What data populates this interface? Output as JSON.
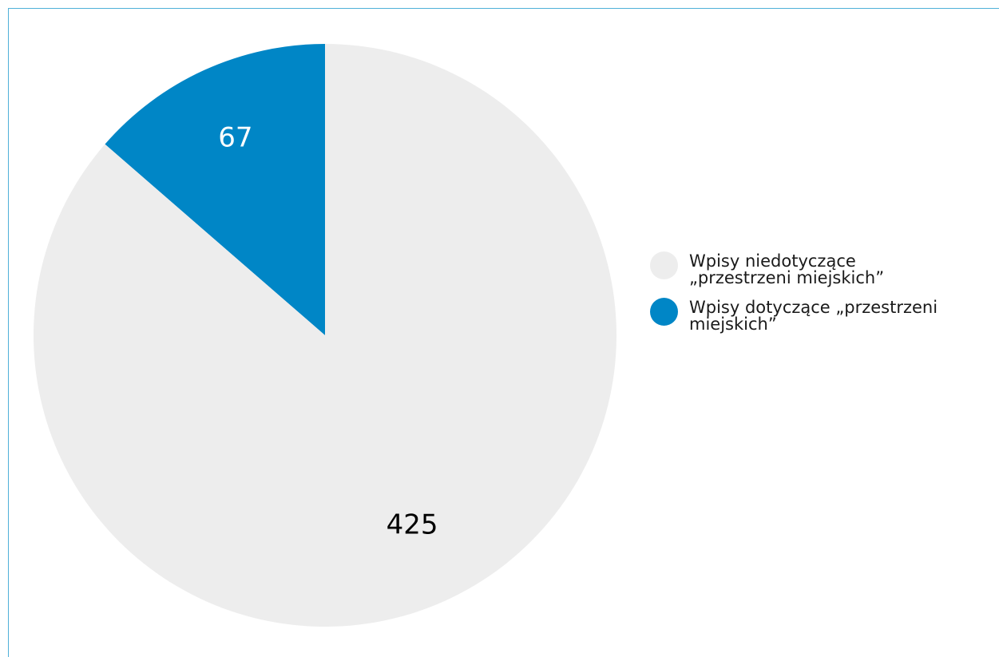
{
  "chart_data": {
    "type": "pie",
    "slices": [
      {
        "label": "Wpisy dotyczące „przestrzeni miejskich”",
        "value": 67,
        "color": "#0086c6",
        "label_color": "#ffffff"
      },
      {
        "label": "Wpisy niedotyczące „przestrzeni miejskich”",
        "value": 425,
        "color": "#ededed",
        "label_color": "#000000"
      }
    ],
    "start_angle": "12 o'clock",
    "direction": "counter-clockwise",
    "legend_position": "right",
    "legend": [
      {
        "line1": "Wpisy niedotyczące",
        "line2": "„przestrzeni miejskich”",
        "color": "#ededed"
      },
      {
        "line1": "Wpisy dotyczące „przestrzeni",
        "line2": "miejskich”",
        "color": "#0086c6"
      }
    ],
    "data_labels": [
      "67",
      "425"
    ]
  },
  "frame_color": "#4fb0d8"
}
